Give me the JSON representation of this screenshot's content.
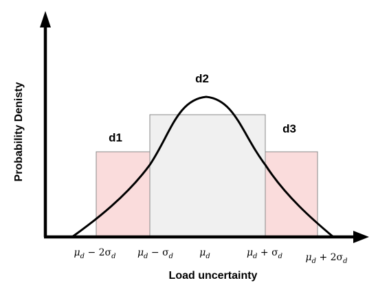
{
  "diagram": {
    "x_axis_label": "Load uncertainty",
    "y_axis_label": "Probability Denisty",
    "regions": [
      {
        "id": "d1",
        "label": "d1",
        "fill": "#fadcdc",
        "stroke": "#888888"
      },
      {
        "id": "d2",
        "label": "d2",
        "fill": "#f0f0f0",
        "stroke": "#888888"
      },
      {
        "id": "d3",
        "label": "d3",
        "fill": "#fadcdc",
        "stroke": "#888888"
      }
    ],
    "ticks": [
      {
        "id": "m2s",
        "base": "μ",
        "sub": "d",
        "rest": " − 2σ",
        "rest_sub": "d"
      },
      {
        "id": "m1s",
        "base": "μ",
        "sub": "d",
        "rest": " − σ",
        "rest_sub": "d"
      },
      {
        "id": "mu",
        "base": "μ",
        "sub": "d",
        "rest": "",
        "rest_sub": ""
      },
      {
        "id": "p1s",
        "base": "μ",
        "sub": "d",
        "rest": " + σ",
        "rest_sub": "d"
      },
      {
        "id": "p2s",
        "base": "μ",
        "sub": "d",
        "rest": " + 2σ",
        "rest_sub": "d"
      }
    ],
    "curve_color": "#000000",
    "axis_color": "#000000"
  }
}
